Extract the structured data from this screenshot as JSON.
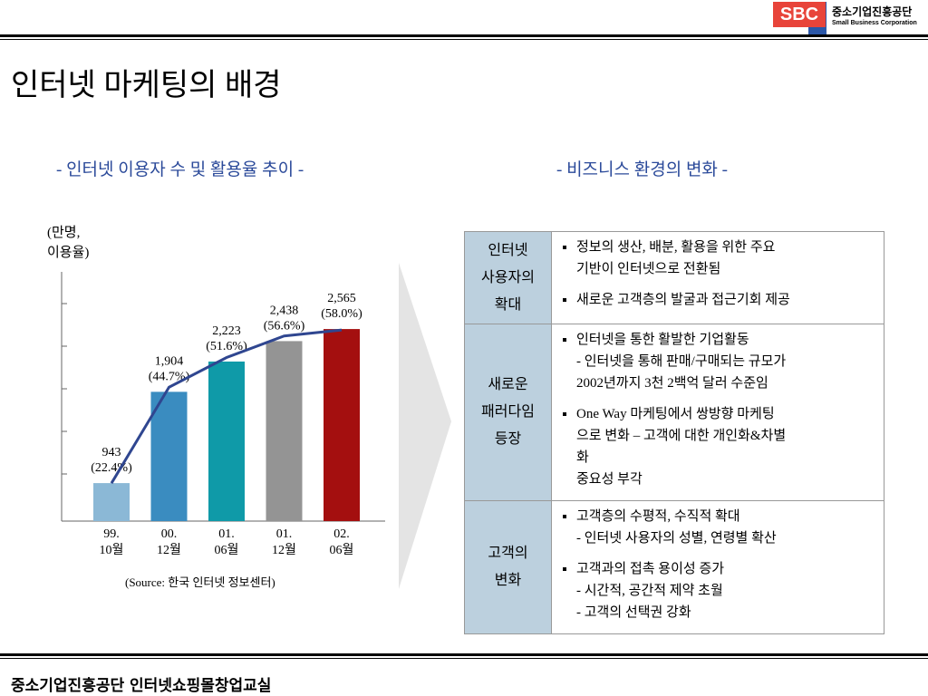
{
  "header": {
    "logo": "SBC",
    "org": "중소기업진흥공단",
    "org_en": "Small Business Corporation"
  },
  "title": "인터넷 마케팅의 배경",
  "chart_data": {
    "type": "bar",
    "title": "- 인터넷 이용자 수 및 활용율 추이 -",
    "y_label": "(만명,\n 이용율)",
    "source": "(Source: 한국 인터넷 정보센터)",
    "categories": [
      "99.\n10월",
      "00.\n12월",
      "01.\n06월",
      "01.\n12월",
      "02.\n06월"
    ],
    "series": [
      {
        "values": [
          943,
          1904,
          2223,
          2438,
          2565
        ],
        "value_labels": [
          "943\n(22.4%)",
          "1,904\n(44.7%)",
          "2,223\n(51.6%)",
          "2,438\n(56.6%)",
          "2,565\n(58.0%)"
        ],
        "colors": [
          "#8bb8d6",
          "#3a8cc0",
          "#0f9aa8",
          "#949494",
          "#a40f0f"
        ]
      },
      {
        "type": "line",
        "axis": "y2",
        "values": [
          22.4,
          44.7,
          51.6,
          56.6,
          58.0
        ],
        "color": "#2f4690"
      }
    ],
    "ylim": [
      543,
      3167
    ],
    "y2lim": [
      13.6,
      71.5
    ]
  },
  "business": {
    "title": "- 비즈니스 환경의 변화 -",
    "rows": [
      {
        "head": "인터넷\n사용자의\n확대",
        "items": [
          "정보의 생산, 배분, 활용을 위한 주요\n기반이 인터넷으로 전환됨",
          "새로운 고객층의 발굴과 접근기회 제공"
        ]
      },
      {
        "head": "새로운\n패러다임\n등장",
        "items": [
          "인터넷을 통한 활발한 기업활동\n- 인터넷을 통해 판매/구매되는 규모가\n   2002년까지 3천 2백억 달러 수준임",
          "One Way 마케팅에서 쌍방향 마케팅\n으로 변화 – 고객에 대한 개인화&차별\n화\n중요성 부각"
        ]
      },
      {
        "head": "고객의\n변화",
        "items": [
          "고객층의 수평적, 수직적 확대\n- 인터넷 사용자의 성별, 연령별 확산",
          "고객과의 접촉 용이성 증가\n- 시간적, 공간적 제약 초월\n- 고객의 선택권 강화"
        ]
      }
    ]
  },
  "footer": "중소기업진흥공단 인터넷쇼핑몰창업교실"
}
